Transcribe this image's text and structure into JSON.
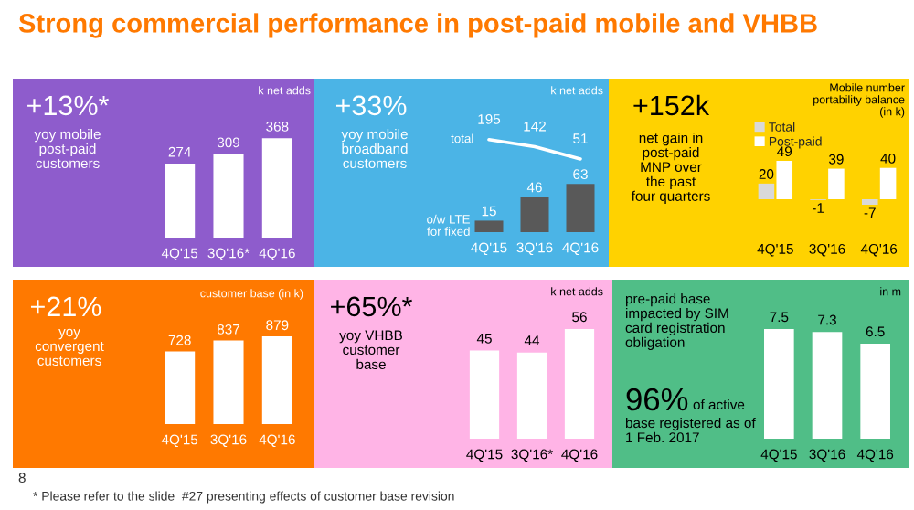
{
  "chart_data": [
    {
      "type": "bar",
      "title": "Strong commercial performance in post-paid mobile and VHBB",
      "ylabel": "k net adds",
      "categories": [
        "4Q'15",
        "3Q'16*",
        "4Q'16"
      ],
      "values": [
        274,
        309,
        368
      ],
      "color": "#ffffff",
      "data_labels": true,
      "tick_labels": "x",
      "annotations": [
        "+13%*",
        "yoy mobile\npost-paid\ncustomers"
      ]
    },
    {
      "type": "bar",
      "ylabel": "k net adds",
      "categories": [
        "4Q'15",
        "3Q'16",
        "4Q'16"
      ],
      "series": [
        {
          "name": "o/w LTE\nfor fixed",
          "color": "#595959",
          "values": [
            15,
            46,
            63
          ]
        }
      ],
      "data_labels": true,
      "tick_labels": "x",
      "annotations": [
        "+33%",
        "yoy mobile\nbroadband\ncustomers"
      ]
    },
    {
      "type": "line",
      "categories": [
        null,
        null,
        null
      ],
      "series": [
        {
          "name": "total",
          "color": "#ffffff",
          "values": [
            195,
            142,
            51
          ]
        }
      ],
      "data_labels": true,
      "tick_labels": false
    },
    {
      "type": "bar",
      "ylabel": "Mobile number\nportability balance\n(in k)",
      "categories": [
        "4Q'15",
        "3Q'16",
        "4Q'16"
      ],
      "series": [
        {
          "name": "Total",
          "color": "#d9d9d9",
          "values": [
            20,
            -1,
            -7
          ]
        },
        {
          "name": "Post-paid",
          "color": "#ffffff",
          "values": [
            49,
            39,
            40
          ]
        }
      ],
      "legend": "top left",
      "data_labels": true,
      "tick_labels": "x",
      "annotations": [
        "+152k",
        "net gain in\npost-paid\nMNP over\nthe past\nfour quarters"
      ]
    },
    {
      "type": "bar",
      "ylabel": "customer base (in k)",
      "categories": [
        "4Q'15",
        "3Q'16",
        "4Q'16"
      ],
      "values": [
        728,
        837,
        879
      ],
      "color": "#ffffff",
      "data_labels": true,
      "tick_labels": "x",
      "annotations": [
        "+21%",
        "yoy\nconvergent\ncustomers"
      ]
    },
    {
      "type": "bar",
      "ylabel": "k net adds",
      "categories": [
        "4Q'15",
        "3Q'16*",
        "4Q'16"
      ],
      "values": [
        45,
        44,
        56
      ],
      "color": "#ffffff",
      "data_labels": true,
      "tick_labels": "x",
      "annotations": [
        "+65%*",
        "yoy VHBB\ncustomer\nbase"
      ]
    },
    {
      "type": "bar",
      "ylabel": "in m",
      "categories": [
        "4Q'15",
        "3Q'16",
        "4Q'16"
      ],
      "values": [
        7.5,
        7.3,
        6.5
      ],
      "color": "#ffffff",
      "data_labels": true,
      "tick_labels": "x",
      "annotations": [
        "pre-paid base\nimpacted by SIM\ncard registration\nobligation",
        "96%",
        "of active",
        "base registered as of\n1 Feb. 2017",
        "8",
        "* Please refer to the slide  #27 presenting effects of customer base revision"
      ]
    }
  ]
}
